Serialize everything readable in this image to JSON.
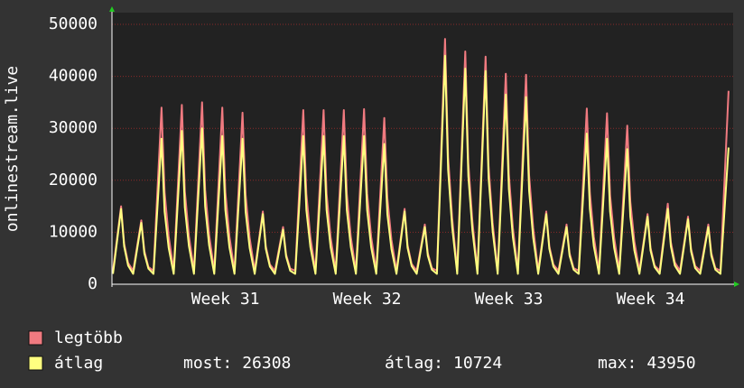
{
  "chart_data": {
    "type": "line",
    "ylabel": "onlinestream.live",
    "xlim": [
      0,
      30.5
    ],
    "xticks": [
      {
        "value": 5.6,
        "label": "Week 31"
      },
      {
        "value": 12.6,
        "label": "Week 32"
      },
      {
        "value": 19.6,
        "label": "Week 33"
      },
      {
        "value": 26.6,
        "label": "Week 34"
      }
    ],
    "ylim": [
      0,
      50000
    ],
    "yticks": [
      0,
      10000,
      20000,
      30000,
      40000,
      50000
    ],
    "grid": true,
    "x": [
      0.05,
      0.45,
      0.6,
      0.8,
      1.05,
      1.45,
      1.6,
      1.8,
      2.05,
      2.45,
      2.6,
      2.8,
      3.05,
      3.45,
      3.6,
      3.8,
      4.05,
      4.45,
      4.6,
      4.8,
      5.05,
      5.45,
      5.6,
      5.8,
      6.05,
      6.45,
      6.6,
      6.8,
      7.05,
      7.45,
      7.6,
      7.8,
      8.05,
      8.45,
      8.6,
      8.8,
      9.05,
      9.45,
      9.6,
      9.8,
      10.05,
      10.45,
      10.6,
      10.8,
      11.05,
      11.45,
      11.6,
      11.8,
      12.05,
      12.45,
      12.6,
      12.8,
      13.05,
      13.45,
      13.6,
      13.8,
      14.05,
      14.45,
      14.6,
      14.8,
      15.05,
      15.45,
      15.6,
      15.8,
      16.05,
      16.45,
      16.6,
      16.8,
      17.05,
      17.45,
      17.6,
      17.8,
      18.05,
      18.45,
      18.6,
      18.8,
      19.05,
      19.45,
      19.6,
      19.8,
      20.05,
      20.45,
      20.6,
      20.8,
      21.05,
      21.45,
      21.6,
      21.8,
      22.05,
      22.45,
      22.6,
      22.8,
      23.05,
      23.45,
      23.6,
      23.8,
      24.05,
      24.45,
      24.6,
      24.8,
      25.05,
      25.45,
      25.6,
      25.8,
      26.05,
      26.45,
      26.6,
      26.8,
      27.05,
      27.45,
      27.6,
      27.8,
      28.05,
      28.45,
      28.6,
      28.8,
      29.05,
      29.45,
      29.6,
      29.8,
      30.05,
      30.45
    ],
    "series": [
      {
        "name": "legtöbb",
        "color": "#f07a80",
        "values": [
          2600,
          15000,
          7800,
          4100,
          2600,
          12300,
          6400,
          3300,
          2600,
          34000,
          17700,
          9200,
          2600,
          34500,
          17900,
          9300,
          2600,
          35000,
          18200,
          9500,
          2600,
          34000,
          17700,
          9200,
          2600,
          33000,
          17200,
          8900,
          2600,
          14000,
          7300,
          3800,
          2600,
          11000,
          5700,
          3000,
          2600,
          33500,
          17400,
          9000,
          2600,
          33500,
          17400,
          9000,
          2600,
          33500,
          17400,
          9000,
          2600,
          33700,
          17500,
          9100,
          2600,
          32000,
          16600,
          8600,
          2600,
          14500,
          7500,
          3900,
          2600,
          11500,
          6000,
          3100,
          2600,
          47200,
          24500,
          12700,
          2600,
          44800,
          23300,
          12100,
          2600,
          43800,
          22800,
          11800,
          2600,
          40500,
          21100,
          10900,
          2600,
          40300,
          21000,
          10900,
          2600,
          14000,
          7300,
          3800,
          2600,
          11500,
          6000,
          3100,
          2600,
          33800,
          17600,
          9100,
          2600,
          32900,
          17100,
          8900,
          2600,
          30500,
          15900,
          8200,
          2600,
          13500,
          7000,
          3600,
          2600,
          15500,
          8100,
          4200,
          2600,
          13000,
          6800,
          3500,
          2600,
          11500,
          6000,
          3100,
          2600,
          37200
        ]
      },
      {
        "name": "átlag",
        "color": "#ffff80",
        "values": [
          2000,
          14500,
          7300,
          3600,
          2000,
          11800,
          5900,
          3000,
          2000,
          28000,
          14000,
          7000,
          2000,
          29500,
          14800,
          7400,
          2000,
          30000,
          15000,
          7500,
          2000,
          28500,
          14300,
          7100,
          2000,
          28000,
          14000,
          7000,
          2000,
          13500,
          6800,
          3400,
          2000,
          10500,
          5300,
          2600,
          2000,
          28500,
          14300,
          7100,
          2000,
          28500,
          14300,
          7100,
          2000,
          28500,
          14300,
          7100,
          2000,
          28500,
          14300,
          7100,
          2000,
          27000,
          13500,
          6800,
          2000,
          14000,
          7000,
          3500,
          2000,
          11000,
          5500,
          2800,
          2000,
          43950,
          22000,
          11000,
          2000,
          41500,
          20800,
          10400,
          2000,
          41000,
          20500,
          10300,
          2000,
          36500,
          18300,
          9100,
          2000,
          36000,
          18000,
          9000,
          2000,
          13500,
          6800,
          3400,
          2000,
          11000,
          5500,
          2800,
          2000,
          29000,
          14500,
          7300,
          2000,
          28000,
          14000,
          7000,
          2000,
          26000,
          13000,
          6500,
          2000,
          13000,
          6500,
          3300,
          2000,
          14500,
          7300,
          3600,
          2000,
          12500,
          6300,
          3100,
          2000,
          11000,
          5500,
          2800,
          2000,
          26308
        ]
      }
    ],
    "stats": [
      {
        "label": "most:",
        "value": 26308
      },
      {
        "label": "átlag:",
        "value": 10724
      },
      {
        "label": "max:",
        "value": 43950
      }
    ]
  }
}
